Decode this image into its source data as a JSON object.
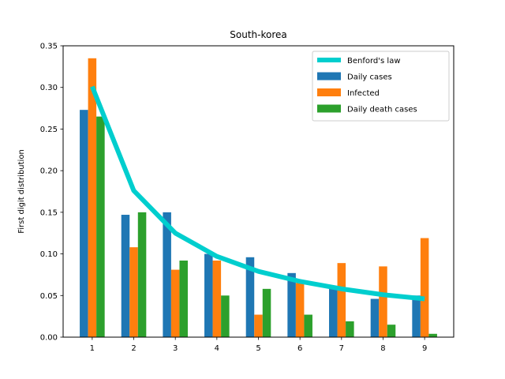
{
  "chart_data": {
    "type": "bar",
    "title": "South-korea",
    "xlabel": "",
    "ylabel": "First digit distribution",
    "categories": [
      "1",
      "2",
      "3",
      "4",
      "5",
      "6",
      "7",
      "8",
      "9"
    ],
    "x": [
      1,
      2,
      3,
      4,
      5,
      6,
      7,
      8,
      9
    ],
    "ylim": [
      0,
      0.35
    ],
    "yticks": [
      "0.00",
      "0.05",
      "0.10",
      "0.15",
      "0.20",
      "0.25",
      "0.30",
      "0.35"
    ],
    "grid": false,
    "legend_position": "top-right",
    "series": [
      {
        "name": "Daily cases",
        "type": "bar",
        "color": "#1f77b4",
        "values": [
          0.273,
          0.147,
          0.15,
          0.1,
          0.096,
          0.077,
          0.058,
          0.046,
          0.05
        ]
      },
      {
        "name": "Infected",
        "type": "bar",
        "color": "#ff7f0e",
        "values": [
          0.335,
          0.108,
          0.081,
          0.092,
          0.027,
          0.065,
          0.089,
          0.085,
          0.119
        ]
      },
      {
        "name": "Daily death cases",
        "type": "bar",
        "color": "#2ca02c",
        "values": [
          0.265,
          0.15,
          0.092,
          0.05,
          0.058,
          0.027,
          0.019,
          0.015,
          0.004
        ]
      }
    ],
    "line": {
      "name": "Benford's law",
      "color": "#00cece",
      "values": [
        0.301,
        0.176,
        0.125,
        0.097,
        0.079,
        0.067,
        0.058,
        0.051,
        0.046
      ]
    }
  }
}
